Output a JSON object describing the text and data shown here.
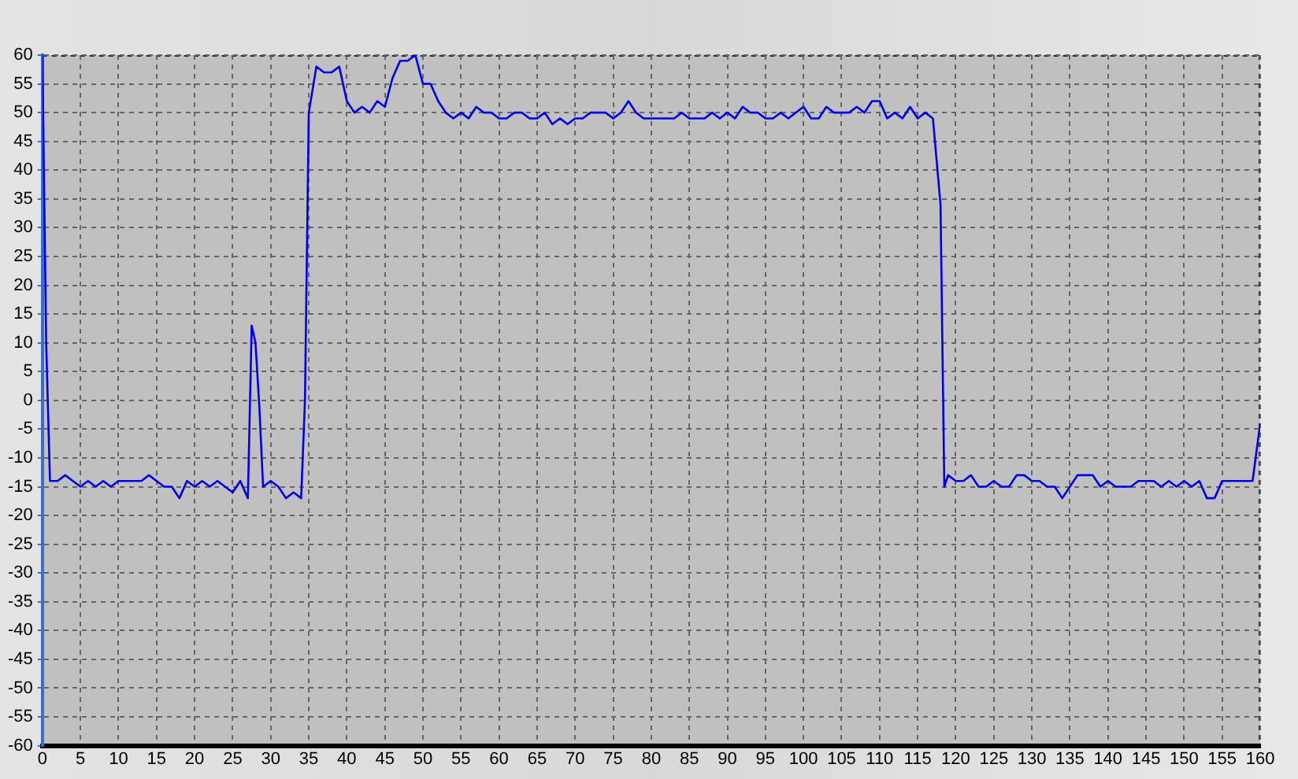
{
  "chart_data": {
    "type": "line",
    "xlim": [
      0,
      160
    ],
    "ylim": [
      -60,
      60
    ],
    "xticks": [
      0,
      5,
      10,
      15,
      20,
      25,
      30,
      35,
      40,
      45,
      50,
      55,
      60,
      65,
      70,
      75,
      80,
      85,
      90,
      95,
      100,
      105,
      110,
      115,
      120,
      125,
      130,
      135,
      140,
      145,
      150,
      155,
      160
    ],
    "yticks": [
      -60,
      -55,
      -50,
      -45,
      -40,
      -35,
      -30,
      -25,
      -20,
      -15,
      -10,
      -5,
      0,
      5,
      10,
      15,
      20,
      25,
      30,
      35,
      40,
      45,
      50,
      55,
      60
    ],
    "grid": true,
    "marker": "none",
    "line_style": "solid",
    "series": [
      {
        "color": "#0000ee",
        "x": [
          0,
          0.5,
          1,
          2,
          3,
          4,
          5,
          6,
          7,
          8,
          9,
          10,
          11,
          12,
          13,
          14,
          15,
          16,
          17,
          18,
          19,
          20,
          21,
          22,
          23,
          24,
          25,
          26,
          27,
          27.5,
          28,
          28.5,
          29,
          30,
          31,
          32,
          33,
          34,
          34.5,
          35,
          36,
          37,
          38,
          39,
          40,
          41,
          42,
          43,
          44,
          45,
          46,
          47,
          48,
          49,
          50,
          51,
          52,
          53,
          54,
          55,
          56,
          57,
          58,
          59,
          60,
          61,
          62,
          63,
          64,
          65,
          66,
          67,
          68,
          69,
          70,
          71,
          72,
          73,
          74,
          75,
          76,
          77,
          78,
          79,
          80,
          81,
          82,
          83,
          84,
          85,
          86,
          87,
          88,
          89,
          90,
          91,
          92,
          93,
          94,
          95,
          96,
          97,
          98,
          99,
          100,
          101,
          102,
          103,
          104,
          105,
          106,
          107,
          108,
          109,
          110,
          111,
          112,
          113,
          114,
          115,
          116,
          117,
          118,
          118.5,
          119,
          120,
          121,
          122,
          123,
          124,
          125,
          126,
          127,
          128,
          129,
          130,
          131,
          132,
          133,
          134,
          135,
          136,
          137,
          138,
          139,
          140,
          141,
          142,
          143,
          144,
          145,
          146,
          147,
          148,
          149,
          150,
          151,
          152,
          153,
          154,
          155,
          156,
          157,
          158,
          159,
          160
        ],
        "values": [
          60,
          10,
          -14,
          -14,
          -13,
          -14,
          -15,
          -14,
          -15,
          -14,
          -15,
          -14,
          -14,
          -14,
          -14,
          -13,
          -14,
          -15,
          -15,
          -17,
          -14,
          -15,
          -14,
          -15,
          -14,
          -15,
          -16,
          -14,
          -17,
          13,
          10,
          -1,
          -15,
          -14,
          -15,
          -17,
          -16,
          -17,
          0,
          50,
          58,
          57,
          57,
          58,
          52,
          50,
          51,
          50,
          52,
          51,
          56,
          59,
          59,
          60,
          55,
          55,
          52,
          50,
          49,
          50,
          49,
          51,
          50,
          50,
          49,
          49,
          50,
          50,
          49,
          49,
          50,
          48,
          49,
          48,
          49,
          49,
          50,
          50,
          50,
          49,
          50,
          52,
          50,
          49,
          49,
          49,
          49,
          49,
          50,
          49,
          49,
          49,
          50,
          49,
          50,
          49,
          51,
          50,
          50,
          49,
          49,
          50,
          49,
          50,
          51,
          49,
          49,
          51,
          50,
          50,
          50,
          51,
          50,
          52,
          52,
          49,
          50,
          49,
          51,
          49,
          50,
          49,
          34,
          -15,
          -13,
          -14,
          -14,
          -13,
          -15,
          -15,
          -14,
          -15,
          -15,
          -13,
          -13,
          -14,
          -14,
          -15,
          -15,
          -17,
          -15,
          -13,
          -13,
          -13,
          -15,
          -14,
          -15,
          -15,
          -15,
          -14,
          -14,
          -14,
          -15,
          -14,
          -15,
          -14,
          -15,
          -14,
          -17,
          -17,
          -14,
          -14,
          -14,
          -14,
          -14,
          -4
        ]
      }
    ]
  }
}
